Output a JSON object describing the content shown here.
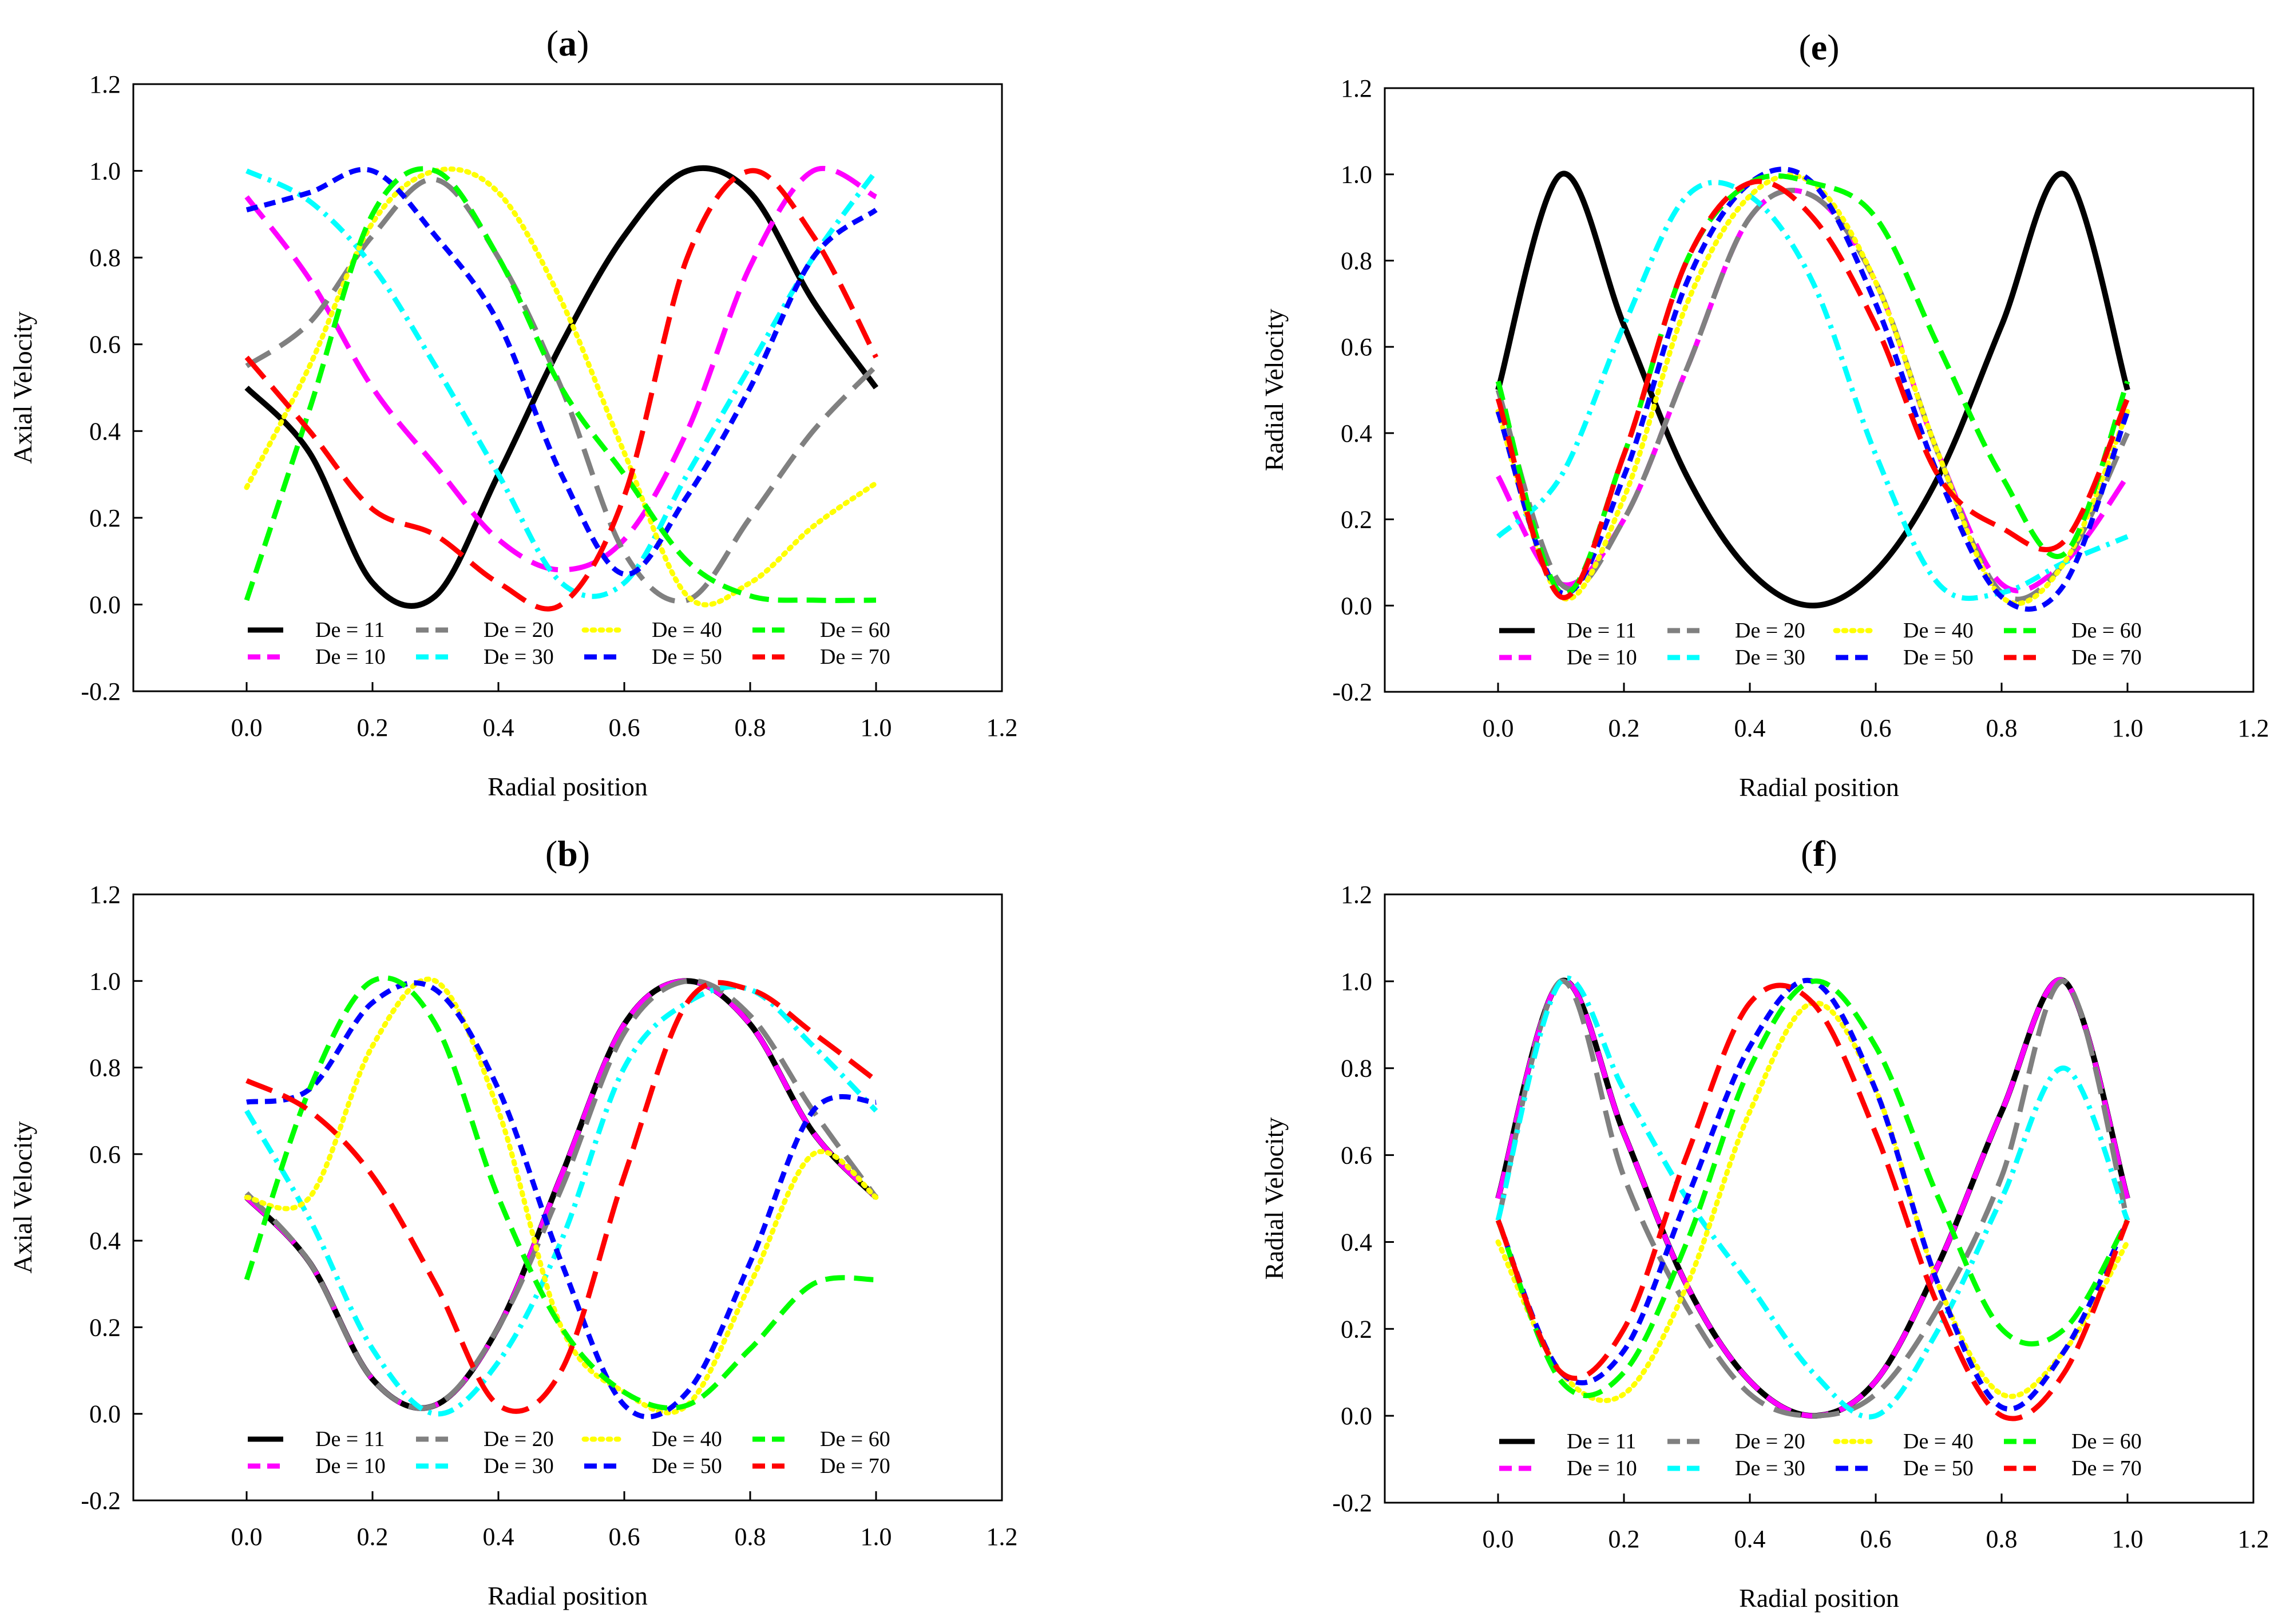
{
  "figure": {
    "styles": {
      "De = 11": {
        "color": "#000000",
        "dash": "solid"
      },
      "De = 10": {
        "color": "#ff00ff",
        "dash": "longdash"
      },
      "De = 20": {
        "color": "#808080",
        "dash": "longdash"
      },
      "De = 30": {
        "color": "#00ffff",
        "dash": "dashdot"
      },
      "De = 40": {
        "color": "#ffff00",
        "dash": "dot"
      },
      "De = 50": {
        "color": "#0000ff",
        "dash": "shortdash"
      },
      "De = 60": {
        "color": "#00ff00",
        "dash": "dash"
      },
      "De = 70": {
        "color": "#ff0000",
        "dash": "longdash"
      }
    }
  },
  "chart_data": [
    {
      "id": "a",
      "type": "line",
      "panel_label": "(a)",
      "title_letter": "a",
      "xlabel": "Radial position",
      "ylabel": "Axial Velocity",
      "xlim": [
        -0.18,
        1.2
      ],
      "ylim": [
        -0.2,
        1.2
      ],
      "xticks": [
        "0.0",
        "0.2",
        "0.4",
        "0.6",
        "0.8",
        "1.0",
        "1.2"
      ],
      "yticks": [
        "-0.2",
        "0.0",
        "0.2",
        "0.4",
        "0.6",
        "0.8",
        "1.0",
        "1.2"
      ],
      "legend": [
        "De = 11",
        "De = 20",
        "De = 40",
        "De = 60",
        "De = 10",
        "De = 30",
        "De = 50",
        "De = 70"
      ],
      "x": [
        0,
        0.1,
        0.2,
        0.3,
        0.4,
        0.5,
        0.6,
        0.7,
        0.8,
        0.9,
        1.0
      ],
      "series": [
        {
          "name": "De = 11",
          "values": [
            0.5,
            0.35,
            0.05,
            0.02,
            0.3,
            0.6,
            0.85,
            1.0,
            0.95,
            0.7,
            0.5
          ]
        },
        {
          "name": "De = 10",
          "values": [
            0.94,
            0.75,
            0.5,
            0.32,
            0.15,
            0.08,
            0.15,
            0.4,
            0.78,
            1.0,
            0.94
          ]
        },
        {
          "name": "De = 20",
          "values": [
            0.55,
            0.65,
            0.85,
            0.98,
            0.8,
            0.5,
            0.12,
            0.01,
            0.2,
            0.4,
            0.55
          ]
        },
        {
          "name": "De = 30",
          "values": [
            1.0,
            0.93,
            0.78,
            0.55,
            0.3,
            0.05,
            0.05,
            0.3,
            0.55,
            0.8,
            1.0
          ]
        },
        {
          "name": "De = 40",
          "values": [
            0.27,
            0.55,
            0.88,
            1.0,
            0.95,
            0.7,
            0.35,
            0.02,
            0.05,
            0.18,
            0.28
          ]
        },
        {
          "name": "De = 50",
          "values": [
            0.91,
            0.95,
            1.0,
            0.85,
            0.65,
            0.3,
            0.07,
            0.25,
            0.5,
            0.8,
            0.91
          ]
        },
        {
          "name": "De = 60",
          "values": [
            0.01,
            0.45,
            0.9,
            1.0,
            0.8,
            0.5,
            0.3,
            0.1,
            0.02,
            0.01,
            0.01
          ]
        },
        {
          "name": "De = 70",
          "values": [
            0.57,
            0.4,
            0.22,
            0.16,
            0.05,
            0.0,
            0.25,
            0.8,
            1.0,
            0.85,
            0.57
          ]
        }
      ]
    },
    {
      "id": "e",
      "type": "line",
      "panel_label": "(e)",
      "title_letter": "e",
      "xlabel": "Radial position",
      "ylabel": "Radial Velocity",
      "xlim": [
        -0.18,
        1.2
      ],
      "ylim": [
        -0.2,
        1.2
      ],
      "xticks": [
        "0.0",
        "0.2",
        "0.4",
        "0.6",
        "0.8",
        "1.0",
        "1.2"
      ],
      "yticks": [
        "-0.2",
        "0.0",
        "0.2",
        "0.4",
        "0.6",
        "0.8",
        "1.0",
        "1.2"
      ],
      "legend": [
        "De = 11",
        "De = 20",
        "De = 40",
        "De = 60",
        "De = 10",
        "De = 30",
        "De = 50",
        "De = 70"
      ],
      "x": [
        0,
        0.1,
        0.2,
        0.3,
        0.4,
        0.5,
        0.6,
        0.7,
        0.8,
        0.9,
        1.0
      ],
      "series": [
        {
          "name": "De = 11",
          "values": [
            0.5,
            1.0,
            0.65,
            0.3,
            0.08,
            0.0,
            0.08,
            0.3,
            0.65,
            1.0,
            0.5
          ]
        },
        {
          "name": "De = 10",
          "values": [
            0.3,
            0.05,
            0.2,
            0.55,
            0.9,
            0.95,
            0.75,
            0.35,
            0.05,
            0.1,
            0.3
          ]
        },
        {
          "name": "De = 20",
          "values": [
            0.5,
            0.05,
            0.2,
            0.55,
            0.9,
            0.95,
            0.75,
            0.35,
            0.03,
            0.1,
            0.4
          ]
        },
        {
          "name": "De = 30",
          "values": [
            0.16,
            0.3,
            0.65,
            0.95,
            0.95,
            0.75,
            0.35,
            0.05,
            0.03,
            0.1,
            0.16
          ]
        },
        {
          "name": "De = 40",
          "values": [
            0.45,
            0.02,
            0.25,
            0.7,
            0.95,
            0.98,
            0.75,
            0.35,
            0.02,
            0.1,
            0.45
          ]
        },
        {
          "name": "De = 50",
          "values": [
            0.45,
            0.03,
            0.3,
            0.75,
            0.98,
            0.98,
            0.7,
            0.3,
            0.02,
            0.05,
            0.45
          ]
        },
        {
          "name": "De = 60",
          "values": [
            0.52,
            0.03,
            0.35,
            0.8,
            0.98,
            0.98,
            0.9,
            0.6,
            0.3,
            0.12,
            0.52
          ]
        },
        {
          "name": "De = 70",
          "values": [
            0.48,
            0.02,
            0.35,
            0.8,
            0.98,
            0.9,
            0.65,
            0.3,
            0.18,
            0.15,
            0.48
          ]
        }
      ]
    },
    {
      "id": "b",
      "type": "line",
      "panel_label": "(b)",
      "title_letter": "b",
      "xlabel": "Radial position",
      "ylabel": "Axial Velocity",
      "xlim": [
        -0.18,
        1.2
      ],
      "ylim": [
        -0.2,
        1.2
      ],
      "xticks": [
        "0.0",
        "0.2",
        "0.4",
        "0.6",
        "0.8",
        "1.0",
        "1.2"
      ],
      "yticks": [
        "-0.2",
        "0.0",
        "0.2",
        "0.4",
        "0.6",
        "0.8",
        "1.0",
        "1.2"
      ],
      "legend": [
        "De = 11",
        "De = 20",
        "De = 40",
        "De = 60",
        "De = 10",
        "De = 30",
        "De = 50",
        "De = 70"
      ],
      "x": [
        0,
        0.1,
        0.2,
        0.3,
        0.4,
        0.5,
        0.6,
        0.7,
        0.8,
        0.9,
        1.0
      ],
      "series": [
        {
          "name": "De = 11",
          "values": [
            0.5,
            0.35,
            0.08,
            0.02,
            0.2,
            0.55,
            0.9,
            1.0,
            0.9,
            0.65,
            0.5
          ]
        },
        {
          "name": "De = 10",
          "values": [
            0.5,
            0.35,
            0.08,
            0.02,
            0.2,
            0.55,
            0.9,
            1.0,
            0.9,
            0.65,
            0.5
          ]
        },
        {
          "name": "De = 20",
          "values": [
            0.51,
            0.35,
            0.08,
            0.02,
            0.2,
            0.52,
            0.88,
            1.0,
            0.92,
            0.7,
            0.5
          ]
        },
        {
          "name": "De = 30",
          "values": [
            0.7,
            0.45,
            0.15,
            0.0,
            0.12,
            0.4,
            0.8,
            0.95,
            0.98,
            0.85,
            0.7
          ]
        },
        {
          "name": "De = 40",
          "values": [
            0.5,
            0.5,
            0.85,
            1.0,
            0.7,
            0.2,
            0.05,
            0.02,
            0.3,
            0.6,
            0.5
          ]
        },
        {
          "name": "De = 50",
          "values": [
            0.72,
            0.75,
            0.95,
            0.98,
            0.75,
            0.35,
            0.02,
            0.05,
            0.35,
            0.7,
            0.72
          ]
        },
        {
          "name": "De = 60",
          "values": [
            0.31,
            0.75,
            1.0,
            0.9,
            0.5,
            0.2,
            0.05,
            0.02,
            0.15,
            0.3,
            0.31
          ]
        },
        {
          "name": "De = 70",
          "values": [
            0.77,
            0.7,
            0.55,
            0.3,
            0.02,
            0.1,
            0.55,
            0.95,
            0.98,
            0.88,
            0.77
          ]
        }
      ]
    },
    {
      "id": "f",
      "type": "line",
      "panel_label": "(f)",
      "title_letter": "f",
      "xlabel": "Radial position",
      "ylabel": "Radial Velocity",
      "xlim": [
        -0.18,
        1.2
      ],
      "ylim": [
        -0.2,
        1.2
      ],
      "xticks": [
        "0.0",
        "0.2",
        "0.4",
        "0.6",
        "0.8",
        "1.0",
        "1.2"
      ],
      "yticks": [
        "-0.2",
        "0.0",
        "0.2",
        "0.4",
        "0.6",
        "0.8",
        "1.0",
        "1.2"
      ],
      "legend": [
        "De = 11",
        "De = 20",
        "De = 40",
        "De = 60",
        "De = 10",
        "De = 30",
        "De = 50",
        "De = 70"
      ],
      "x": [
        0,
        0.1,
        0.2,
        0.3,
        0.4,
        0.5,
        0.6,
        0.7,
        0.8,
        0.9,
        1.0
      ],
      "series": [
        {
          "name": "De = 11",
          "values": [
            0.5,
            1.0,
            0.65,
            0.3,
            0.08,
            0.0,
            0.08,
            0.35,
            0.7,
            1.0,
            0.5
          ]
        },
        {
          "name": "De = 10",
          "values": [
            0.5,
            1.0,
            0.65,
            0.3,
            0.08,
            0.0,
            0.08,
            0.35,
            0.7,
            1.0,
            0.5
          ]
        },
        {
          "name": "De = 20",
          "values": [
            0.45,
            1.0,
            0.55,
            0.25,
            0.05,
            0.0,
            0.05,
            0.25,
            0.55,
            1.0,
            0.45
          ]
        },
        {
          "name": "De = 30",
          "values": [
            0.45,
            1.0,
            0.75,
            0.5,
            0.3,
            0.1,
            0.0,
            0.2,
            0.5,
            0.8,
            0.45
          ]
        },
        {
          "name": "De = 40",
          "values": [
            0.4,
            0.1,
            0.05,
            0.3,
            0.7,
            0.95,
            0.75,
            0.3,
            0.05,
            0.15,
            0.4
          ]
        },
        {
          "name": "De = 50",
          "values": [
            0.45,
            0.1,
            0.15,
            0.5,
            0.85,
            1.0,
            0.75,
            0.3,
            0.02,
            0.15,
            0.45
          ]
        },
        {
          "name": "De = 60",
          "values": [
            0.45,
            0.08,
            0.1,
            0.4,
            0.8,
            1.0,
            0.85,
            0.5,
            0.2,
            0.2,
            0.45
          ]
        },
        {
          "name": "De = 70",
          "values": [
            0.45,
            0.1,
            0.2,
            0.6,
            0.95,
            0.95,
            0.65,
            0.25,
            0.0,
            0.1,
            0.45
          ]
        }
      ]
    }
  ]
}
